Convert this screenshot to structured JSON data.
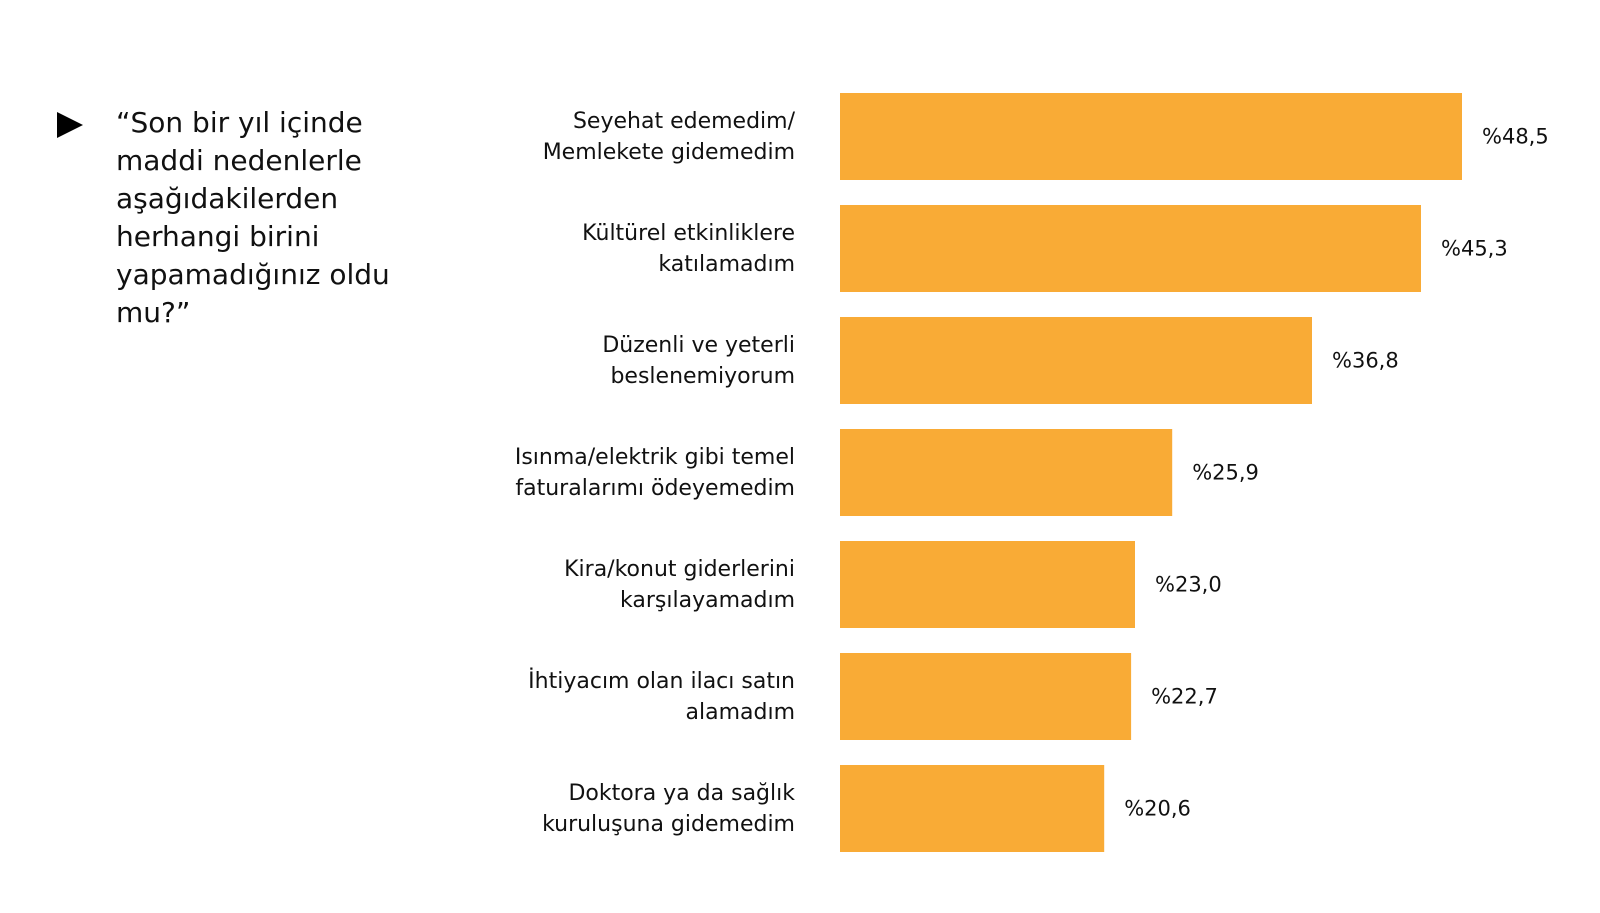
{
  "slide": {
    "bullet_icon": "right-triangle-icon",
    "question": "“Son bir yıl içinde maddi nedenlerle aşağıdakilerden herhangi birini yapamadığınız oldu mu?”"
  },
  "chart_data": {
    "type": "bar",
    "orientation": "horizontal",
    "bar_color": "#F9AB36",
    "categories": [
      [
        "Seyehat edemedim/",
        "Memlekete gidemedim"
      ],
      [
        "Kültürel etkinliklere",
        "katılamadım"
      ],
      [
        "Düzenli ve yeterli",
        "beslenemiyorum"
      ],
      [
        "Isınma/elektrik gibi temel",
        "faturalarımı ödeyemedim"
      ],
      [
        "Kira/konut giderlerini",
        "karşılayamadım"
      ],
      [
        "İhtiyacım olan ilacı satın",
        "alamadım"
      ],
      [
        "Doktora ya da sağlık",
        "kuruluşuna gidemedim"
      ]
    ],
    "values": [
      48.5,
      45.3,
      36.8,
      25.9,
      23.0,
      22.7,
      20.6
    ],
    "value_labels": [
      "%48,5",
      "%45,3",
      "%36,8",
      "%25,9",
      "%23,0",
      "%22,7",
      "%20,6"
    ],
    "xlim": [
      0,
      48.5
    ],
    "grid": false,
    "legend": "none"
  }
}
